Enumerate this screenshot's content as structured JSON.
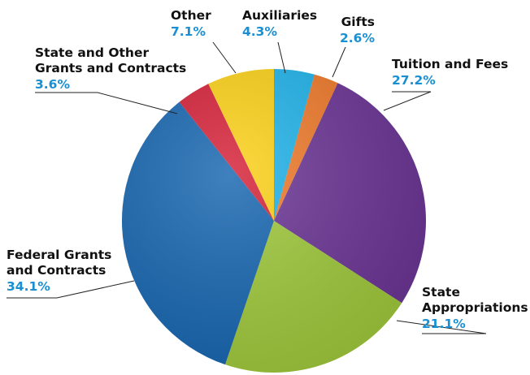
{
  "chart_data": {
    "type": "pie",
    "slices": [
      {
        "label": "Auxiliaries",
        "value": 4.3,
        "display": "4.3%",
        "color": "#1fb3ea"
      },
      {
        "label": "Gifts",
        "value": 2.6,
        "display": "2.6%",
        "color": "#f07a2a"
      },
      {
        "label": "Tuition and Fees",
        "value": 27.2,
        "display": "27.2%",
        "color": "#6b3495"
      },
      {
        "label": "State Appropriations",
        "label_lines": [
          "State",
          "Appropriations"
        ],
        "value": 21.1,
        "display": "21.1%",
        "color": "#9fc93a"
      },
      {
        "label": "Federal Grants and Contracts",
        "label_lines": [
          "Federal Grants",
          "and Contracts"
        ],
        "value": 34.1,
        "display": "34.1%",
        "color": "#1565b0"
      },
      {
        "label": "State and Other Grants and Contracts",
        "label_lines": [
          "State and Other",
          "Grants and Contracts"
        ],
        "value": 3.6,
        "display": "3.6%",
        "color": "#d61f36"
      },
      {
        "label": "Other",
        "value": 7.1,
        "display": "7.1%",
        "color": "#fcd116"
      }
    ],
    "start_angle_deg": 0,
    "direction": "clockwise",
    "percent_color": "#1a8fd1"
  }
}
